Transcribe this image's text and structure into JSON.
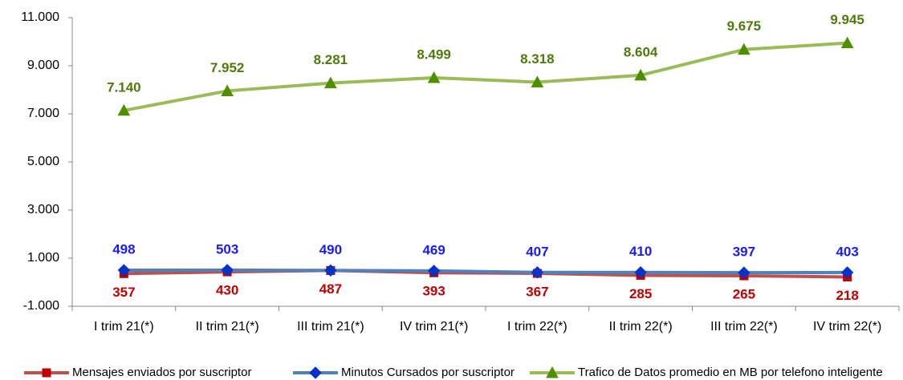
{
  "chart_data": {
    "type": "line",
    "categories": [
      "I trim 21(*)",
      "II trim 21(*)",
      "III trim 21(*)",
      "IV trim 21(*)",
      "I trim 22(*)",
      "II trim 22(*)",
      "III trim 22(*)",
      "IV trim 22(*)"
    ],
    "series": [
      {
        "name": "Mensajes enviados por suscriptor",
        "color": "#c0504d",
        "marker_color": "#c00000",
        "label_color": "#c00000",
        "marker": "square",
        "values": [
          357,
          430,
          487,
          393,
          367,
          285,
          265,
          218
        ]
      },
      {
        "name": "Minutos Cursados por suscriptor",
        "color": "#4f81bd",
        "marker_color": "#0033cc",
        "label_color": "#1a1aff",
        "marker": "diamond",
        "values": [
          498,
          503,
          490,
          469,
          407,
          410,
          397,
          403
        ]
      },
      {
        "name": "Trafico de Datos promedio en MB por telefono inteligente",
        "color": "#9bbb59",
        "marker_color": "#4e8f00",
        "label_color": "#4f7a0a",
        "marker": "triangle",
        "values": [
          7140,
          7952,
          8281,
          8499,
          8318,
          8604,
          9675,
          9945
        ],
        "value_labels": [
          "7.140",
          "7.952",
          "8.281",
          "8.499",
          "8.318",
          "8.604",
          "9.675",
          "9.945"
        ]
      }
    ],
    "ylim": [
      -1000,
      11000
    ],
    "yticks": [
      {
        "value": -1000,
        "label": "-1.000"
      },
      {
        "value": 1000,
        "label": "1.000"
      },
      {
        "value": 3000,
        "label": "3.000"
      },
      {
        "value": 5000,
        "label": "5.000"
      },
      {
        "value": 7000,
        "label": "7.000"
      },
      {
        "value": 9000,
        "label": "9.000"
      },
      {
        "value": 11000,
        "label": "11.000"
      }
    ],
    "grid": false,
    "legend": "bottom"
  }
}
